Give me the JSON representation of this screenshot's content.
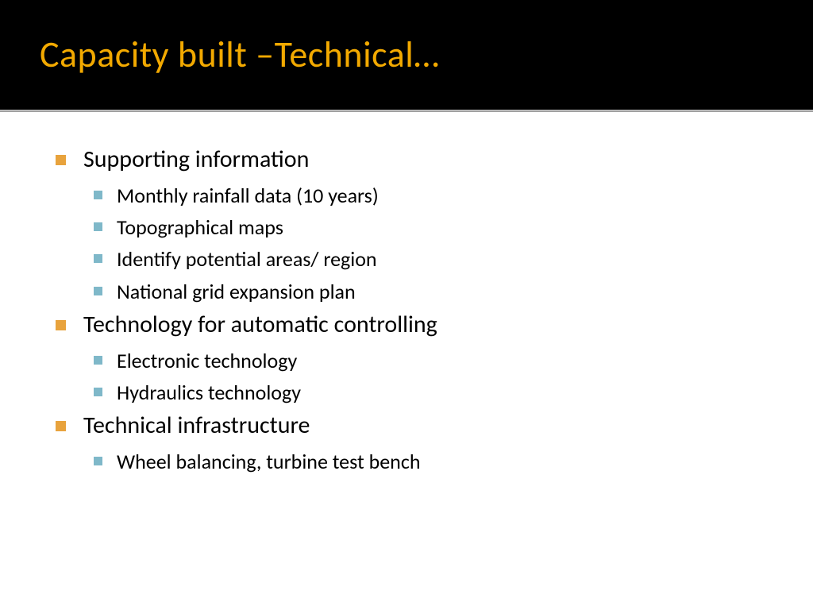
{
  "title": "Capacity built –Technical…",
  "title_color": "#f2a900",
  "title_bg": "#000000",
  "title_fontsize": 46,
  "l1_bullet_color": "#e8a33d",
  "l2_bullet_color": "#7fb8c9",
  "l1_fontsize": 30,
  "l2_fontsize": 26,
  "items": [
    {
      "text": "Supporting information",
      "children": [
        "Monthly rainfall data (10 years)",
        "Topographical maps",
        "Identify potential areas/ region",
        "National grid expansion plan"
      ]
    },
    {
      "text": "Technology for automatic controlling",
      "children": [
        "Electronic technology",
        "Hydraulics technology"
      ]
    },
    {
      "text": "Technical infrastructure",
      "children": [
        "Wheel balancing, turbine test bench"
      ]
    }
  ]
}
